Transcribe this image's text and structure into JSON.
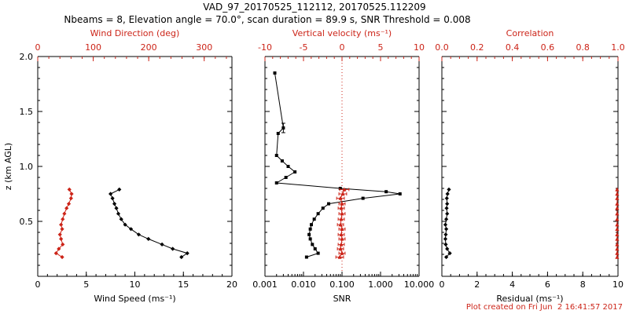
{
  "header": {
    "title": "VAD_97_20170525_112112, 20170525.112209",
    "subtitle": "Nbeams = 8, Elevation angle = 70.0°, scan duration = 89.9 s, SNR Threshold = 0.008"
  },
  "footer": {
    "created": "Plot created on Fri Jun  2 16:41:57 2017"
  },
  "colors": {
    "red": "#cc2418",
    "black": "#000000",
    "background": "#ffffff"
  },
  "chart_data": [
    {
      "type": "line",
      "name": "wind-panel",
      "x_bottom": {
        "label": "Wind Speed (ms⁻¹)",
        "scale": "linear",
        "range": [
          0,
          20
        ],
        "ticks": [
          0,
          5,
          10,
          15,
          20
        ],
        "tick_labels": [
          "0",
          "5",
          "10",
          "15",
          "20"
        ],
        "minor_step": 1
      },
      "x_top": {
        "label": "Wind Direction (deg)",
        "scale": "linear",
        "range": [
          0,
          350
        ],
        "ticks": [
          0,
          100,
          200,
          300
        ],
        "tick_labels": [
          "0",
          "100",
          "200",
          "300"
        ],
        "minor_step": 20
      },
      "y": {
        "label": "z (km AGL)",
        "range": [
          0,
          2
        ],
        "ticks": [
          0.5,
          1.0,
          1.5,
          2.0
        ],
        "tick_labels": [
          "0.5",
          "1.0",
          "1.5",
          "2.0"
        ],
        "minor_step": 0.1,
        "show_labels": true
      },
      "series": [
        {
          "name": "wind_speed",
          "axis": "bottom",
          "color": "black",
          "marker": "diamond",
          "points": [
            [
              14.8,
              0.175
            ],
            [
              15.4,
              0.21
            ],
            [
              13.9,
              0.25
            ],
            [
              12.8,
              0.29
            ],
            [
              11.4,
              0.34
            ],
            [
              10.4,
              0.38
            ],
            [
              9.6,
              0.43
            ],
            [
              9.0,
              0.47
            ],
            [
              8.6,
              0.52
            ],
            [
              8.3,
              0.57
            ],
            [
              8.1,
              0.62
            ],
            [
              7.9,
              0.66
            ],
            [
              7.7,
              0.71
            ],
            [
              7.5,
              0.75
            ],
            [
              8.4,
              0.79
            ]
          ]
        },
        {
          "name": "wind_direction",
          "axis": "top",
          "color": "red",
          "marker": "diamond",
          "points": [
            [
              44,
              0.175
            ],
            [
              33,
              0.21
            ],
            [
              38,
              0.25
            ],
            [
              45,
              0.29
            ],
            [
              42,
              0.34
            ],
            [
              40,
              0.38
            ],
            [
              44,
              0.43
            ],
            [
              42,
              0.47
            ],
            [
              45,
              0.52
            ],
            [
              48,
              0.57
            ],
            [
              52,
              0.62
            ],
            [
              56,
              0.66
            ],
            [
              60,
              0.71
            ],
            [
              61,
              0.75
            ],
            [
              57,
              0.79
            ]
          ]
        }
      ]
    },
    {
      "type": "line",
      "name": "snr-panel",
      "x_bottom": {
        "label": "SNR",
        "scale": "log",
        "range": [
          0.001,
          10
        ],
        "ticks": [
          0.001,
          0.01,
          0.1,
          1,
          10
        ],
        "tick_labels": [
          "0.001",
          "0.010",
          "0.100",
          "1.000",
          "10.000"
        ]
      },
      "x_top": {
        "label": "Vertical velocity (ms⁻¹)",
        "scale": "linear",
        "range": [
          -10,
          10
        ],
        "ticks": [
          -10,
          -5,
          0,
          5,
          10
        ],
        "tick_labels": [
          "-10",
          "-5",
          "0",
          "5",
          "10"
        ],
        "minor_step": 1,
        "ref_line": 0
      },
      "y": {
        "label": "",
        "range": [
          0,
          2
        ],
        "ticks": [
          0.5,
          1.0,
          1.5,
          2.0
        ],
        "tick_labels": [
          "0.5",
          "1.0",
          "1.5",
          "2.0"
        ],
        "minor_step": 0.1,
        "show_labels": false
      },
      "series": [
        {
          "name": "snr",
          "axis": "bottom",
          "color": "black",
          "marker": "square",
          "points": [
            [
              0.012,
              0.175
            ],
            [
              0.024,
              0.21
            ],
            [
              0.02,
              0.25
            ],
            [
              0.017,
              0.29
            ],
            [
              0.015,
              0.34
            ],
            [
              0.014,
              0.38
            ],
            [
              0.015,
              0.43
            ],
            [
              0.016,
              0.47
            ],
            [
              0.019,
              0.52
            ],
            [
              0.024,
              0.57
            ],
            [
              0.032,
              0.62
            ],
            [
              0.045,
              0.66
            ],
            [
              0.35,
              0.71
            ],
            [
              3.2,
              0.75
            ],
            [
              1.4,
              0.77
            ],
            [
              0.09,
              0.8
            ],
            [
              0.002,
              0.85
            ],
            [
              0.0035,
              0.9
            ],
            [
              0.006,
              0.95
            ],
            [
              0.004,
              1.0
            ],
            [
              0.0028,
              1.05
            ],
            [
              0.002,
              1.1
            ],
            [
              0.0022,
              1.3
            ],
            [
              0.003,
              1.35,
              0,
              0.03
            ],
            [
              0.0018,
              1.85
            ]
          ]
        },
        {
          "name": "vertical_velocity",
          "axis": "top",
          "color": "red",
          "marker": "triangle",
          "points": [
            [
              -0.3,
              0.175,
              0.5
            ],
            [
              0.0,
              0.21,
              0.4
            ],
            [
              -0.2,
              0.25,
              0.4
            ],
            [
              -0.1,
              0.29,
              0.4
            ],
            [
              0.0,
              0.34,
              0.4
            ],
            [
              -0.1,
              0.38,
              0.4
            ],
            [
              0.0,
              0.43,
              0.4
            ],
            [
              -0.2,
              0.47,
              0.4
            ],
            [
              -0.1,
              0.52,
              0.4
            ],
            [
              0.0,
              0.57,
              0.4
            ],
            [
              -0.1,
              0.62,
              0.4
            ],
            [
              0.0,
              0.66,
              0.4
            ],
            [
              -0.2,
              0.71,
              0.5
            ],
            [
              0.1,
              0.75,
              0.5
            ],
            [
              0.3,
              0.79,
              0.6
            ]
          ]
        }
      ]
    },
    {
      "type": "line",
      "name": "residual-panel",
      "x_bottom": {
        "label": "Residual (ms⁻¹)",
        "scale": "linear",
        "range": [
          0,
          10
        ],
        "ticks": [
          0,
          2,
          4,
          6,
          8,
          10
        ],
        "tick_labels": [
          "0",
          "2",
          "4",
          "6",
          "8",
          "10"
        ],
        "minor_step": 0.5
      },
      "x_top": {
        "label": "Correlation",
        "scale": "linear",
        "range": [
          0,
          1
        ],
        "ticks": [
          0,
          0.2,
          0.4,
          0.6,
          0.8,
          1.0
        ],
        "tick_labels": [
          "0.0",
          "0.2",
          "0.4",
          "0.6",
          "0.8",
          "1.0"
        ],
        "minor_step": 0.05
      },
      "y": {
        "label": "",
        "range": [
          0,
          2
        ],
        "ticks": [
          0.5,
          1.0,
          1.5,
          2.0
        ],
        "tick_labels": [
          "0.5",
          "1.0",
          "1.5",
          "2.0"
        ],
        "minor_step": 0.1,
        "show_labels": false
      },
      "series": [
        {
          "name": "residual",
          "axis": "bottom",
          "color": "black",
          "marker": "diamond",
          "points": [
            [
              0.25,
              0.175
            ],
            [
              0.45,
              0.21
            ],
            [
              0.3,
              0.25
            ],
            [
              0.22,
              0.29
            ],
            [
              0.2,
              0.34
            ],
            [
              0.22,
              0.38
            ],
            [
              0.25,
              0.43
            ],
            [
              0.2,
              0.47
            ],
            [
              0.25,
              0.52
            ],
            [
              0.3,
              0.57
            ],
            [
              0.27,
              0.62
            ],
            [
              0.3,
              0.66
            ],
            [
              0.28,
              0.71
            ],
            [
              0.32,
              0.75
            ],
            [
              0.4,
              0.79
            ]
          ]
        },
        {
          "name": "correlation",
          "axis": "top",
          "color": "red",
          "marker": "triangle",
          "points": [
            [
              0.995,
              0.175
            ],
            [
              0.995,
              0.21
            ],
            [
              0.995,
              0.25
            ],
            [
              0.995,
              0.29
            ],
            [
              0.995,
              0.34
            ],
            [
              0.995,
              0.38
            ],
            [
              0.995,
              0.43
            ],
            [
              0.995,
              0.47
            ],
            [
              0.995,
              0.52
            ],
            [
              0.995,
              0.57
            ],
            [
              0.995,
              0.62
            ],
            [
              0.995,
              0.66
            ],
            [
              0.995,
              0.71
            ],
            [
              0.995,
              0.75
            ],
            [
              0.995,
              0.79
            ]
          ]
        }
      ]
    }
  ]
}
